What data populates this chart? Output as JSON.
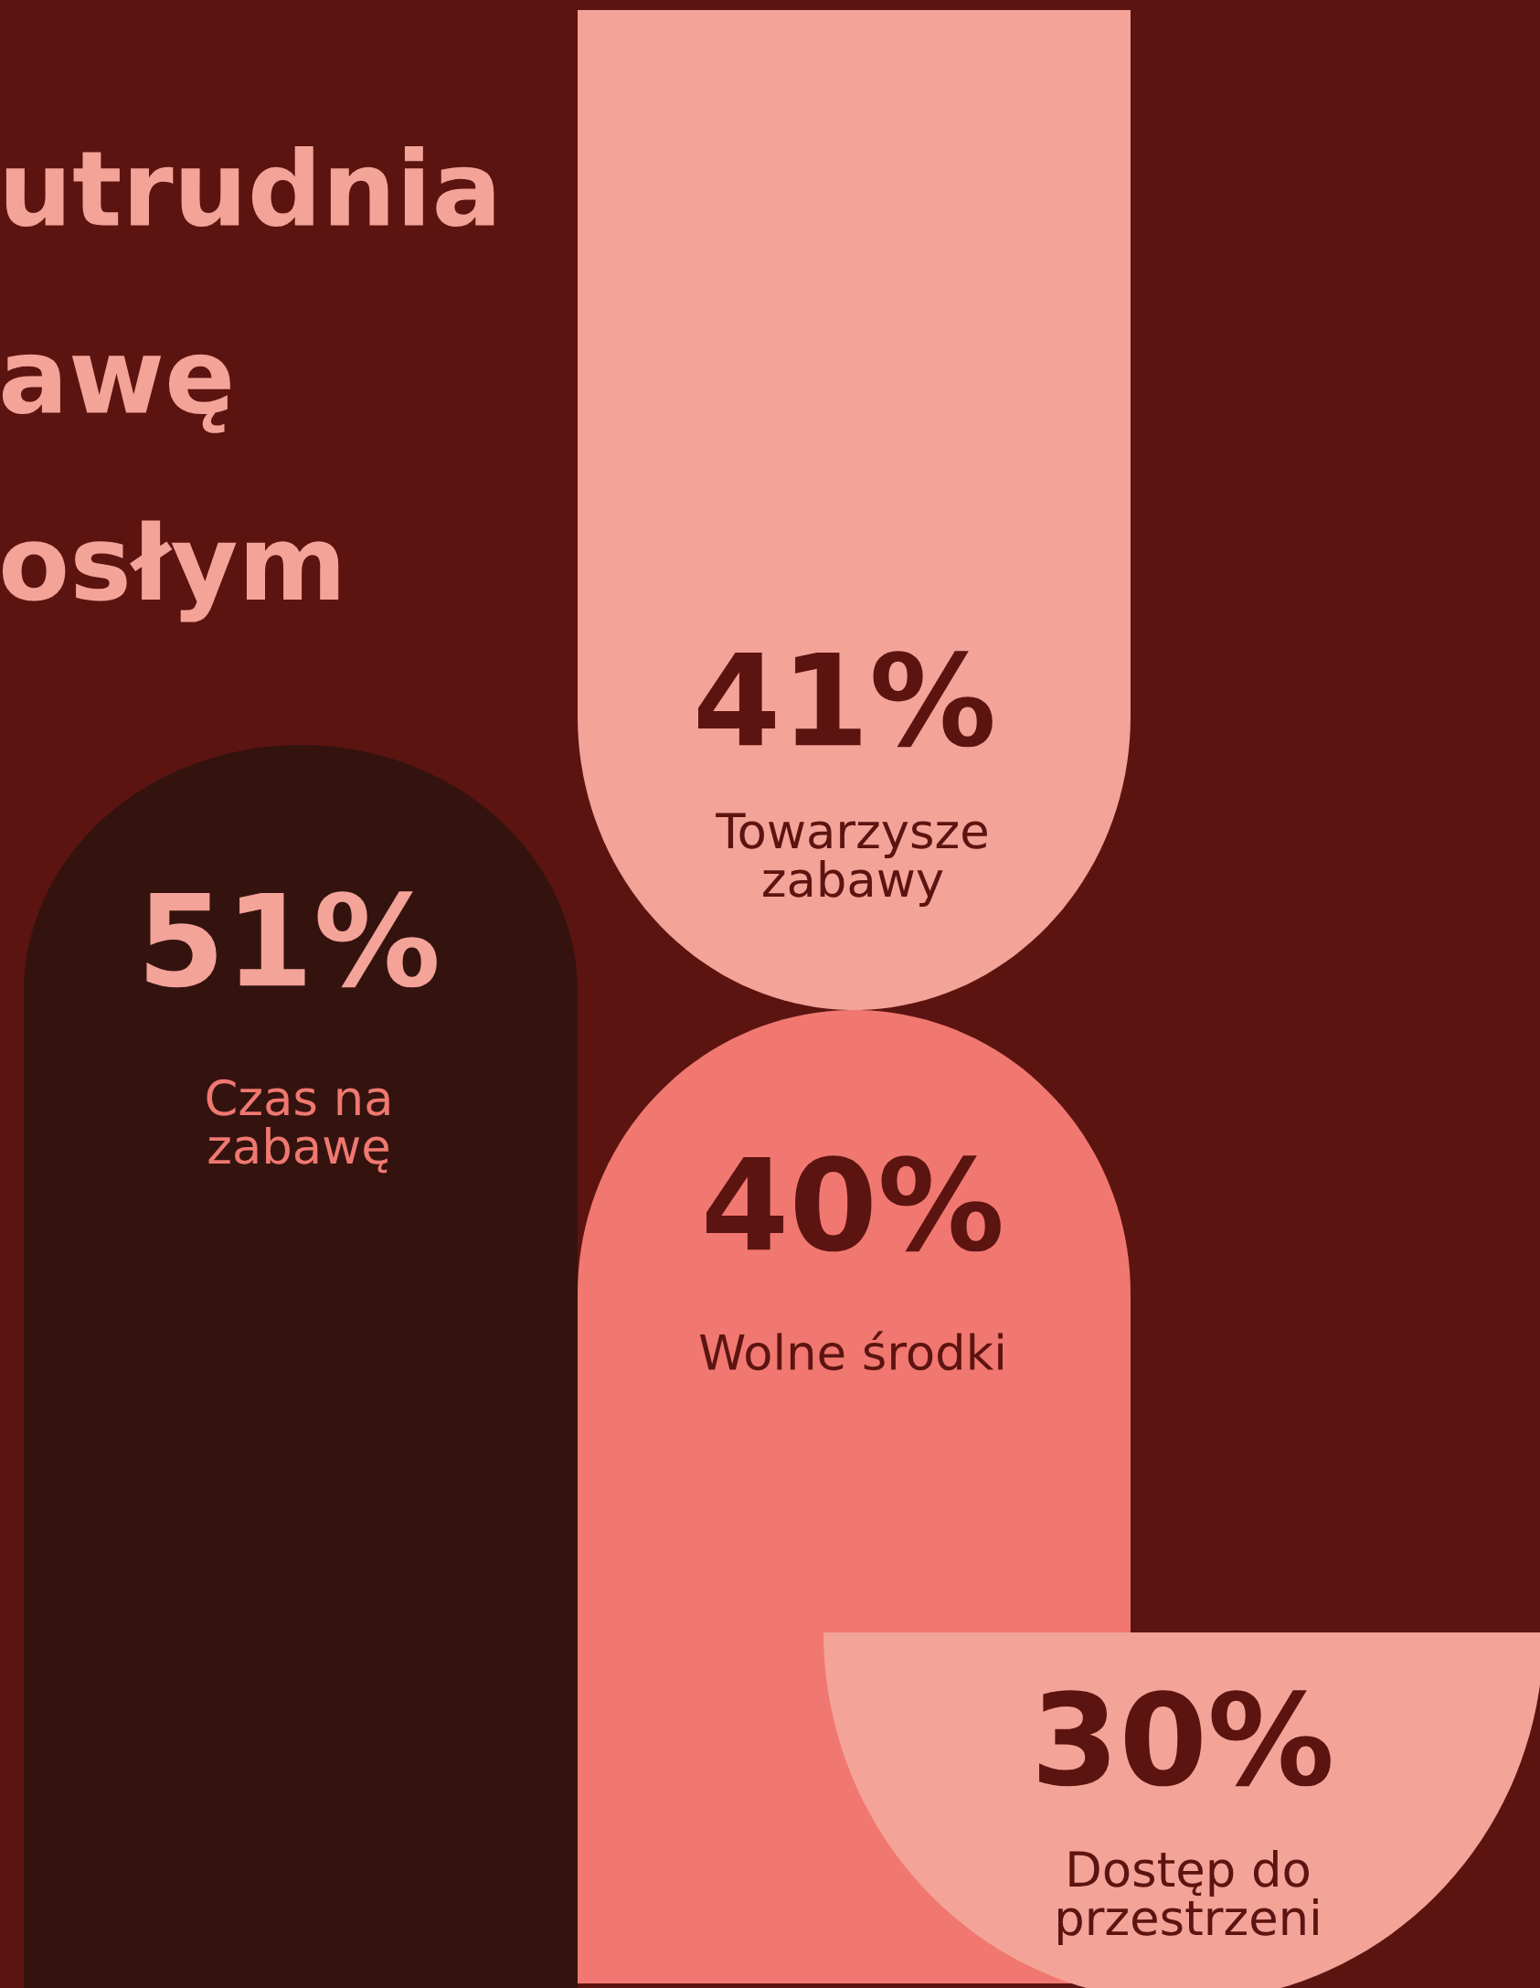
{
  "chart_data": {
    "type": "other",
    "title": "utrudnia\nawę\nosłym",
    "categories": [
      "Czas na\nzabawę",
      "Towarzysze\nzabawy",
      "Wolne środki",
      "Dostęp do\nprzestrzeni"
    ],
    "values": [
      51,
      41,
      40,
      30
    ],
    "value_labels": [
      "51%",
      "41%",
      "40%",
      "30%"
    ],
    "colors": [
      "#34130f",
      "#f4a398",
      "#f07870",
      "#f4a398"
    ]
  }
}
